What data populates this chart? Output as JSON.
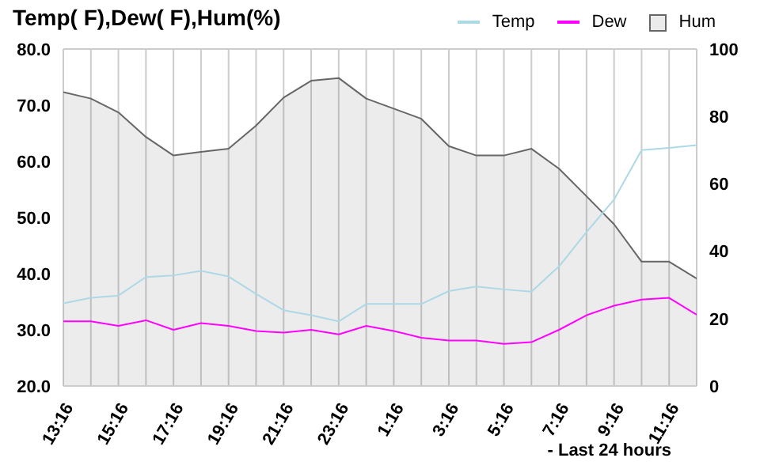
{
  "chart_data": {
    "type": "line",
    "title": "Temp( F),Dew( F),Hum(%)",
    "categories": [
      "13:16",
      null,
      "15:16",
      null,
      "17:16",
      null,
      "19:16",
      null,
      "21:16",
      null,
      "23:16",
      null,
      "1:16",
      null,
      "3:16",
      null,
      "5:16",
      null,
      "7:16",
      null,
      "9:16",
      null,
      "11:16",
      null
    ],
    "series": [
      {
        "name": "Temp",
        "color": "#add8e6",
        "values": [
          34.7,
          35.7,
          36.1,
          39.4,
          39.7,
          40.5,
          39.5,
          36.4,
          33.5,
          32.6,
          31.5,
          34.6,
          34.6,
          34.6,
          36.9,
          37.7,
          37.2,
          36.8,
          41.3,
          47.4,
          53.2,
          62.0,
          62.4,
          62.9
        ]
      },
      {
        "name": "Dew",
        "color": "#ff00ff",
        "values": [
          31.5,
          31.5,
          30.7,
          31.7,
          30.0,
          31.2,
          30.7,
          29.8,
          29.5,
          30.0,
          29.2,
          30.7,
          29.8,
          28.6,
          28.1,
          28.1,
          27.5,
          27.8,
          30.0,
          32.6,
          34.3,
          35.4,
          35.7,
          32.7
        ]
      },
      {
        "name": "Hum",
        "color": "#666666",
        "type": "area",
        "axis": "y2",
        "values": [
          87.2,
          85.3,
          81.2,
          73.9,
          68.4,
          69.5,
          70.4,
          77.3,
          85.6,
          90.6,
          91.4,
          85.3,
          82.3,
          79.3,
          71.2,
          68.4,
          68.4,
          70.4,
          64.5,
          56.3,
          48.0,
          36.9,
          36.9,
          31.9
        ]
      }
    ],
    "ylim": [
      20,
      80
    ],
    "yticks": [
      {
        "value": 20,
        "label": "20.0"
      },
      {
        "value": 30,
        "label": "30.0"
      },
      {
        "value": 40,
        "label": "40.0"
      },
      {
        "value": 50,
        "label": "50.0"
      },
      {
        "value": 60,
        "label": "60.0"
      },
      {
        "value": 70,
        "label": "70.0"
      },
      {
        "value": 80,
        "label": "80.0"
      }
    ],
    "y2lim": [
      0,
      100
    ],
    "y2ticks": [
      0,
      20,
      40,
      60,
      80,
      100
    ],
    "grid": true,
    "legend": "top right",
    "annotations": [
      "- Last 24 hours"
    ]
  }
}
